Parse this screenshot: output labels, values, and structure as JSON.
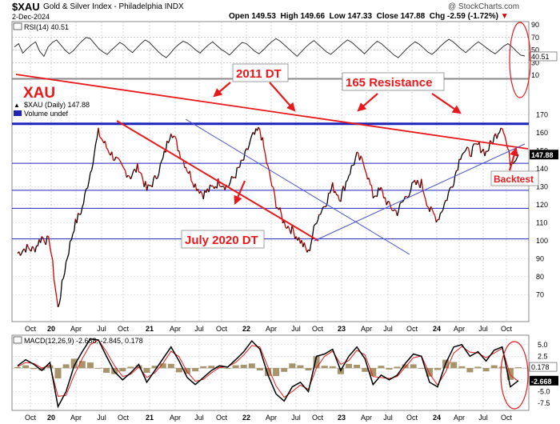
{
  "header": {
    "symbol": "$XAU",
    "name": "Gold & Silver Index - Philadelphia  INDX",
    "date": "2-Dec-2024",
    "watermark": "@ StockCharts.com",
    "open_label": "Open",
    "open": "149.53",
    "high_label": "High",
    "high": "149.66",
    "low_label": "Low",
    "low": "147.33",
    "close_label": "Close",
    "close": "147.88",
    "chg_label": "Chg",
    "chg": "-2.59 (-1.72%)",
    "chg_arrow": "▼"
  },
  "chart_data": [
    {
      "type": "line",
      "panel": "rsi",
      "title": "RSI(14) 40.51",
      "current_value": "40.51",
      "y_ticks": [
        "90",
        "70",
        "50",
        "30",
        "10"
      ],
      "ylim": [
        10,
        90
      ],
      "reference_lines": [
        70,
        50,
        30
      ],
      "values": [
        55,
        60,
        45,
        52,
        58,
        63,
        48,
        40,
        55,
        62,
        66,
        58,
        50,
        44,
        49,
        57,
        64,
        70,
        68,
        60,
        52,
        47,
        43,
        50,
        56,
        62,
        58,
        51,
        46,
        53,
        60,
        66,
        62,
        55,
        48,
        42,
        38,
        45,
        53,
        59,
        64,
        61,
        56,
        50,
        45,
        52,
        58,
        63,
        57,
        51,
        47,
        42,
        49,
        56,
        62,
        60,
        54,
        48,
        44,
        50,
        57,
        63,
        68,
        64,
        58,
        52,
        46,
        40,
        47,
        54,
        60,
        65,
        59,
        53,
        47,
        43,
        49,
        55,
        61,
        66,
        62,
        56,
        50,
        44,
        51,
        58,
        64,
        60,
        54,
        48,
        42,
        38,
        45,
        52,
        58,
        63,
        59,
        53,
        47,
        43,
        49,
        56,
        62,
        67,
        63,
        57,
        51,
        46,
        52,
        58,
        63,
        58,
        53,
        48,
        44,
        50,
        56,
        60,
        55,
        48,
        42,
        40.51
      ]
    },
    {
      "type": "line",
      "panel": "price",
      "title": "$XAU (Daily) 147.88",
      "legend_volume": "Volume undef",
      "current_value": "147.88",
      "ylim": [
        55,
        180
      ],
      "y_ticks": [
        "170",
        "160",
        "150",
        "140",
        "130",
        "120",
        "110",
        "100",
        "90",
        "80",
        "70"
      ],
      "x_ticks": [
        "Oct",
        "20",
        "Apr",
        "Jul",
        "Oct",
        "21",
        "Apr",
        "Jul",
        "Oct",
        "22",
        "Apr",
        "Jul",
        "Oct",
        "23",
        "Apr",
        "Jul",
        "Oct",
        "24",
        "Apr",
        "Jul",
        "Oct"
      ],
      "x": [
        "2019-10",
        "2019-11",
        "2019-12",
        "2020-01",
        "2020-02",
        "2020-03",
        "2020-04",
        "2020-05",
        "2020-06",
        "2020-07",
        "2020-08",
        "2020-09",
        "2020-10",
        "2020-11",
        "2020-12",
        "2021-01",
        "2021-02",
        "2021-03",
        "2021-04",
        "2021-05",
        "2021-06",
        "2021-07",
        "2021-08",
        "2021-09",
        "2021-10",
        "2021-11",
        "2021-12",
        "2022-01",
        "2022-02",
        "2022-03",
        "2022-04",
        "2022-05",
        "2022-06",
        "2022-07",
        "2022-08",
        "2022-09",
        "2022-10",
        "2022-11",
        "2022-12",
        "2023-01",
        "2023-02",
        "2023-03",
        "2023-04",
        "2023-05",
        "2023-06",
        "2023-07",
        "2023-08",
        "2023-09",
        "2023-10",
        "2023-11",
        "2023-12",
        "2024-01",
        "2024-02",
        "2024-03",
        "2024-04",
        "2024-05",
        "2024-06",
        "2024-07",
        "2024-08",
        "2024-09",
        "2024-10",
        "2024-11",
        "2024-12"
      ],
      "values": [
        93,
        96,
        95,
        102,
        99,
        62,
        88,
        108,
        118,
        138,
        160,
        152,
        146,
        140,
        136,
        141,
        128,
        134,
        145,
        162,
        150,
        140,
        131,
        126,
        129,
        133,
        130,
        137,
        145,
        157,
        162,
        140,
        121,
        110,
        106,
        100,
        93,
        112,
        120,
        130,
        124,
        137,
        147,
        142,
        125,
        128,
        119,
        116,
        124,
        131,
        132,
        117,
        112,
        122,
        134,
        150,
        149,
        153,
        149,
        157,
        165,
        144,
        147.88
      ],
      "annotations": [
        {
          "text": "XAU",
          "color": "#e8191b"
        },
        {
          "text": "2011 DT",
          "color": "#e8191b"
        },
        {
          "text": "165 Resistance",
          "color": "#e8191b"
        },
        {
          "text": "July 2020 DT",
          "color": "#e8191b"
        },
        {
          "text": "Backtest",
          "color": "#e8191b"
        }
      ],
      "horizontal_levels": [
        {
          "value": 165,
          "color": "#1f25b8",
          "style": "thick"
        },
        {
          "value": 143,
          "color": "#1f25b8"
        },
        {
          "value": 128,
          "color": "#1f25b8"
        },
        {
          "value": 118,
          "color": "#1f25b8"
        },
        {
          "value": 101,
          "color": "#1f25b8"
        }
      ],
      "colors": {
        "price": "#000000",
        "bear": "#cc0000",
        "trendline": "#e8191b",
        "levels": "#1f25b8",
        "thin_trend": "#3b43c9"
      }
    },
    {
      "type": "line",
      "panel": "macd",
      "title": "MACD(12,26,9) -2.668, -2.845, 0.178",
      "macd_value": "-2.668",
      "histogram_value": "0.178",
      "ylim": [
        -9,
        7
      ],
      "y_ticks": [
        "5.0",
        "2.5",
        "0.0",
        "-2.5",
        "-5.0",
        "-7.5"
      ],
      "macd": [
        0.5,
        1.8,
        0.8,
        -0.5,
        1.2,
        -8.2,
        -5.0,
        0.5,
        3.5,
        6.2,
        6.0,
        2.5,
        -0.8,
        -2.5,
        -1.0,
        0.8,
        -3.0,
        -0.5,
        2.0,
        4.5,
        1.5,
        -2.0,
        -3.5,
        -2.0,
        -0.5,
        0.5,
        0.2,
        1.8,
        3.5,
        5.8,
        4.0,
        -1.5,
        -5.5,
        -7.0,
        -4.0,
        -3.0,
        -5.0,
        2.5,
        3.0,
        4.0,
        -0.5,
        2.5,
        4.5,
        2.0,
        -3.5,
        -1.5,
        -2.5,
        -1.5,
        1.0,
        3.0,
        2.5,
        -3.0,
        -4.0,
        1.0,
        4.5,
        5.0,
        2.5,
        3.5,
        1.5,
        3.8,
        4.5,
        -4.0,
        -2.668
      ],
      "signal": [
        0.3,
        1.2,
        1.0,
        0.0,
        0.6,
        -6.0,
        -5.8,
        -1.5,
        2.0,
        5.0,
        6.0,
        3.5,
        0.5,
        -1.8,
        -1.3,
        0.2,
        -2.0,
        -1.0,
        1.0,
        3.6,
        2.4,
        -0.8,
        -2.8,
        -2.4,
        -1.0,
        0.1,
        0.3,
        1.2,
        2.8,
        4.8,
        4.5,
        0.2,
        -3.8,
        -6.2,
        -5.0,
        -3.6,
        -4.5,
        0.0,
        2.5,
        3.6,
        0.8,
        1.6,
        3.8,
        2.8,
        -1.8,
        -2.0,
        -2.2,
        -1.8,
        0.2,
        2.2,
        2.6,
        -1.2,
        -3.6,
        -0.8,
        3.2,
        4.6,
        3.4,
        3.2,
        2.2,
        3.2,
        4.2,
        -1.5,
        -2.845
      ]
    }
  ]
}
